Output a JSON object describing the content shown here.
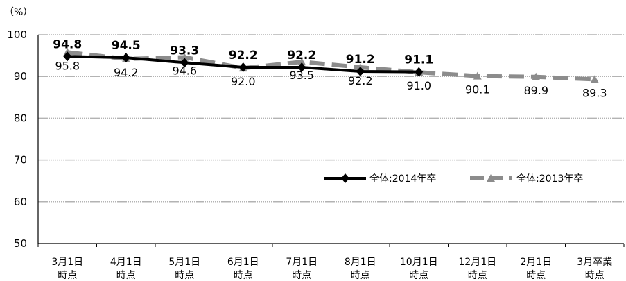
{
  "chart_data": {
    "type": "line",
    "unit_label": "（%）",
    "categories": [
      [
        "3月1日",
        "時点"
      ],
      [
        "4月1日",
        "時点"
      ],
      [
        "5月1日",
        "時点"
      ],
      [
        "6月1日",
        "時点"
      ],
      [
        "7月1日",
        "時点"
      ],
      [
        "8月1日",
        "時点"
      ],
      [
        "10月1日",
        "時点"
      ],
      [
        "12月1日",
        "時点"
      ],
      [
        "2月1日",
        "時点"
      ],
      [
        "3月卒業",
        "時点"
      ]
    ],
    "ylim": [
      50,
      100
    ],
    "yticks": [
      50,
      60,
      70,
      80,
      90,
      100
    ],
    "grid": true,
    "legend_position": "right",
    "series": [
      {
        "name": "全体:2014年卒",
        "values": [
          94.8,
          94.5,
          93.3,
          92.2,
          92.2,
          91.2,
          91.1,
          null,
          null,
          null
        ],
        "labels": [
          "94.8",
          "94.5",
          "93.3",
          "92.2",
          "92.2",
          "91.2",
          "91.1",
          null,
          null,
          null
        ],
        "color": "#000000",
        "style": "solid",
        "marker": "diamond"
      },
      {
        "name": "全体:2013年卒",
        "values": [
          95.8,
          94.2,
          94.6,
          92.0,
          93.5,
          92.2,
          91.0,
          90.1,
          89.9,
          89.3
        ],
        "labels": [
          "95.8",
          "94.2",
          "94.6",
          "92.0",
          "93.5",
          "92.2",
          "91.0",
          "90.1",
          "89.9",
          "89.3"
        ],
        "color": "#8c8c8c",
        "style": "dashed",
        "marker": "triangle"
      }
    ]
  }
}
